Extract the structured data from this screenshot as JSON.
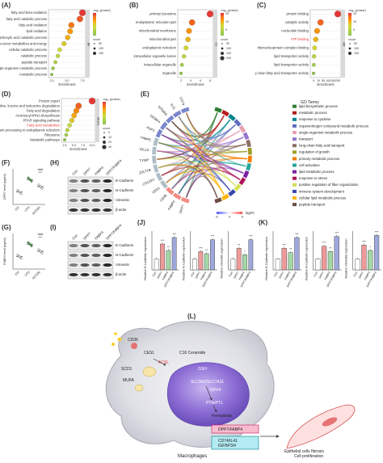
{
  "panels": {
    "A": {
      "label": "(A)",
      "terms": [
        "fatty acid beta-oxidation",
        "fatty acid catabolic process",
        "fatty acid oxidation",
        "lipid oxidation",
        "monocarboxylic acid catabolic process",
        "generation of precursor metabolites and energy",
        "cellular catabolic process",
        "catabolic process",
        "peptide transport",
        "single-organism metabolic process",
        "metabolic process"
      ],
      "highlight": -1,
      "x": [
        7.0,
        6.6,
        5.2,
        5.0,
        4.6,
        4.0,
        3.3,
        3.0,
        2.6,
        2.2,
        2.0
      ],
      "xticks": [
        "2.5",
        "5.0",
        "7.5"
      ],
      "xlabel": "Enrichment",
      "side": "BP",
      "legend_title": "-log₁₀(pvalue)",
      "legend_vals": [
        "",
        "",
        "",
        ""
      ],
      "count_title": "count",
      "count_vals": [
        "50",
        "100",
        "150"
      ]
    },
    "B": {
      "label": "(B)",
      "terms": [
        "primary lysosome",
        "endoplasmic reticulum part",
        "mitochondrial membrane",
        "mitochondrial part",
        "endoplasmic reticulum",
        "intracellular organelle lumen",
        "intracellular organelle",
        "organelle"
      ],
      "highlight": -1,
      "x": [
        7.8,
        4.2,
        3.6,
        3.4,
        3.0,
        2.6,
        2.2,
        2.0
      ],
      "xticks": [
        "2",
        "4",
        "6",
        "8"
      ],
      "xlabel": "Enrichment",
      "side": "CC",
      "legend_title": "-log₁₀(pvalue)",
      "legend_vals": [
        "15",
        "10",
        "5"
      ],
      "count_title": "count",
      "count_vals": [
        "50",
        "100",
        "150",
        "200"
      ]
    },
    "C": {
      "label": "(C)",
      "terms": [
        "protein binding",
        "catalytic activity",
        "nucleotide binding",
        "ATP binding",
        "ribonucleoprotein complex binding",
        "lipid transporter activity",
        "lipid transporter activity",
        "long-chain fatty acid transporter activity"
      ],
      "highlight": 3,
      "x": [
        180,
        55,
        30,
        20,
        12,
        8,
        6,
        4
      ],
      "xticks": [
        "5",
        "10",
        "50",
        "100",
        "150",
        "200"
      ],
      "xlabel": "Enrichment",
      "side": "MF",
      "legend_title": "-log₁₀(pvalue)",
      "legend_vals": [
        "15",
        "10",
        "5"
      ],
      "count_title": "count",
      "count_vals": [
        "50",
        "100",
        "150"
      ]
    },
    "D": {
      "label": "(D)",
      "terms": [
        "Protein export",
        "Valine, leucine and isoleucine degradation",
        "Fatty acid degradation",
        "Aminoacyl-tRNA biosynthesis",
        "PPAR signaling pathway",
        "Fatty acid metabolism",
        "Protein processing in endoplasmic reticulum",
        "Ribosome",
        "Metabolic pathways"
      ],
      "highlight": 5,
      "x": [
        15,
        9,
        8,
        7,
        6,
        5,
        4,
        3.5,
        2.8
      ],
      "xticks": [
        "2.5",
        "5.0",
        "7.5",
        "10.0"
      ],
      "xlabel": "Enrichment",
      "side": "KEGG",
      "legend_title": "-log₁₀(pvalue)",
      "legend_vals": [
        "",
        "",
        ""
      ],
      "count_title": "count",
      "count_vals": [
        "5",
        "10",
        "20",
        "30"
      ]
    },
    "E": {
      "label": "(E)",
      "genes": [
        "DPP7",
        "FABP4",
        "CD36",
        "CES1",
        "COL5A1",
        "GOLT1B",
        "TYMP",
        "IGLL5",
        "FABP5",
        "AUP1",
        "IGFBP4",
        "MTMR3",
        "IL41",
        "CD74"
      ],
      "legend_title": "GO Terms",
      "go_terms": [
        "lipid biosynthetic process",
        "metabolic process",
        "response to cytokine",
        "organonitrogen compound metabolic process",
        "single-organism metabolic process",
        "transport",
        "long-chain fatty acid transport",
        "regulation of growth",
        "primary metabolic process",
        "cell activation",
        "lipid metabolic process",
        "response to stress",
        "positive regulation of fiber organization",
        "immune system development",
        "cellular lipid metabolic process",
        "peptide transport"
      ],
      "go_colors": [
        "#2e7d32",
        "#b71c1c",
        "#00838f",
        "#5c6bc0",
        "#e8a0b0",
        "#9575cd",
        "#8d6e63",
        "#9e9d24",
        "#f57c00",
        "#26a69a",
        "#7b1fa2",
        "#ad1457",
        "#d4e157",
        "#3949ab",
        "#ffb300",
        "#6d4c41"
      ],
      "logfc_label": "logFC",
      "logfc_ticks": [
        "-6",
        "0",
        "6"
      ]
    },
    "F": {
      "label": "(F)",
      "ylabel": "DPP7 level (ng/ml)",
      "groups": [
        "Ctrl",
        "LPS",
        "siCD36"
      ],
      "sig": [
        "***",
        "###"
      ]
    },
    "G": {
      "label": "(G)",
      "ylabel": "FABP4 level (ng/ml)",
      "groups": [
        "Ctrl",
        "LPS",
        "siCD36"
      ],
      "sig": [
        "***",
        "###"
      ]
    },
    "H": {
      "label": "(H)",
      "cols": [
        "Con",
        "DPP7",
        "FABP4",
        "DPP7/FABP4"
      ],
      "rows": [
        "E-Cadherin",
        "N-Cadherin",
        "Vimentin",
        "β-actin"
      ]
    },
    "I": {
      "label": "(I)",
      "cols": [
        "Con",
        "DPP7",
        "FABP4",
        "DPP7/FABP4"
      ],
      "rows": [
        "E-Cadherin",
        "N-Cadherin",
        "Vimentin",
        "β-actin"
      ]
    },
    "J": {
      "label": "(J)",
      "plots": [
        {
          "ylabel": "Relative E-Cadherin expression",
          "values": [
            1.0,
            2.4,
            1.8,
            3.0
          ],
          "sig": [
            "***",
            "**",
            "***"
          ]
        },
        {
          "ylabel": "Relative N-Cadherin expression",
          "values": [
            1.0,
            1.7,
            1.5,
            2.8
          ],
          "sig": [
            "***",
            "**",
            "***"
          ]
        },
        {
          "ylabel": "Relative Vimentin expression",
          "values": [
            1.0,
            2.0,
            1.4,
            2.8
          ],
          "sig": [
            "**",
            "*",
            "***"
          ]
        }
      ],
      "xcats": [
        "Con",
        "DPP7",
        "FABP4",
        "DPP7/FABP4"
      ]
    },
    "K": {
      "label": "(K)",
      "plots": [
        {
          "ylabel": "Relative E-Cadherin expression",
          "values": [
            1.0,
            2.0,
            1.6,
            3.0
          ],
          "sig": [
            "***",
            "**",
            "***"
          ]
        },
        {
          "ylabel": "Relative N-Cadherin expression",
          "values": [
            1.0,
            2.2,
            1.7,
            3.1
          ],
          "sig": [
            "***",
            "**",
            "***"
          ]
        },
        {
          "ylabel": "Relative Vimentin expression",
          "values": [
            1.0,
            2.3,
            1.8,
            3.2
          ],
          "sig": [
            "***",
            "*",
            "***"
          ]
        }
      ],
      "xcats": [
        "Con",
        "DPP7",
        "FABP4",
        "DPP7/FABP4"
      ]
    },
    "L": {
      "label": "(L)",
      "cell_labels": {
        "cd36": "CD36",
        "ces1": "CES1",
        "scd1": "SCD1",
        "mufa": "MUFA",
        "acsl": "ACSL",
        "c16": "C16 Ceramide",
        "gsh": "GSH",
        "slc": "SLC3A2/SLC7A11",
        "gpx4": "GPX4",
        "ptfe": "PTfe/PTL",
        "dpp7": "DPP7",
        "fabp4": "FABP4",
        "ferro": "Ferroptosis",
        "macro": "Macrophages"
      },
      "box1": "DPP7/FABP4",
      "box2": "CD74/IL41\nIGFBP3/4",
      "caption": "Epithelial cells fibrosis\nCell proliferation"
    }
  }
}
